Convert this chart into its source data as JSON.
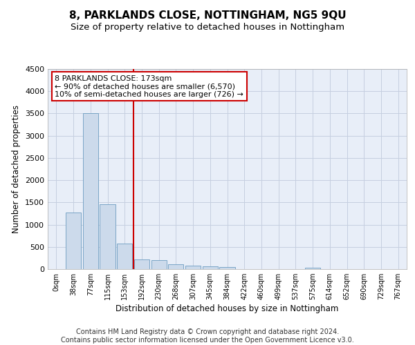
{
  "title": "8, PARKLANDS CLOSE, NOTTINGHAM, NG5 9QU",
  "subtitle": "Size of property relative to detached houses in Nottingham",
  "xlabel": "Distribution of detached houses by size in Nottingham",
  "ylabel": "Number of detached properties",
  "bin_labels": [
    "0sqm",
    "38sqm",
    "77sqm",
    "115sqm",
    "153sqm",
    "192sqm",
    "230sqm",
    "268sqm",
    "307sqm",
    "345sqm",
    "384sqm",
    "422sqm",
    "460sqm",
    "499sqm",
    "537sqm",
    "575sqm",
    "614sqm",
    "652sqm",
    "690sqm",
    "729sqm",
    "767sqm"
  ],
  "bar_values": [
    5,
    1270,
    3500,
    1460,
    580,
    220,
    200,
    105,
    70,
    55,
    40,
    0,
    0,
    0,
    0,
    30,
    0,
    0,
    0,
    0,
    0
  ],
  "bar_color": "#ccdaeb",
  "bar_edge_color": "#6a9bbf",
  "grid_color": "#c5cfe0",
  "bg_color": "#e8eef8",
  "ylim": [
    0,
    4500
  ],
  "yticks": [
    0,
    500,
    1000,
    1500,
    2000,
    2500,
    3000,
    3500,
    4000,
    4500
  ],
  "vline_x": 4.5,
  "vline_color": "#cc0000",
  "annotation_text": "8 PARKLANDS CLOSE: 173sqm\n← 90% of detached houses are smaller (6,570)\n10% of semi-detached houses are larger (726) →",
  "annotation_box_color": "#ffffff",
  "annotation_box_edge": "#cc0000",
  "footnote": "Contains HM Land Registry data © Crown copyright and database right 2024.\nContains public sector information licensed under the Open Government Licence v3.0.",
  "title_fontsize": 11,
  "subtitle_fontsize": 9.5,
  "annotation_fontsize": 8.0,
  "footnote_fontsize": 7.0
}
